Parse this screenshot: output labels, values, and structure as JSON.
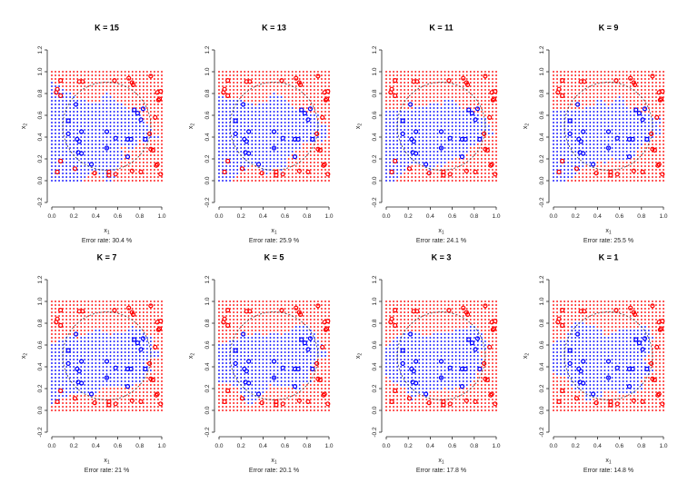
{
  "chart_data": {
    "type": "scatter",
    "xlabel": "x1",
    "ylabel": "x2",
    "xlim": [
      0,
      1
    ],
    "ylim": [
      -0.2,
      1.2
    ],
    "xticks": [
      "0.0",
      "0.2",
      "0.4",
      "0.6",
      "0.8",
      "1.0"
    ],
    "yticks": [
      "-0.2",
      "0.0",
      "0.2",
      "0.4",
      "0.6",
      "0.8",
      "1.0",
      "1.2"
    ],
    "colors": {
      "class_blue": "#0000ff",
      "class_red": "#ff0000"
    },
    "true_boundary": {
      "shape": "dashed circle",
      "center": [
        0.5,
        0.5
      ],
      "radius": 0.4
    },
    "panels": [
      {
        "title": "K = 15",
        "k": 15,
        "error": "Error rate: 30.4 %"
      },
      {
        "title": "K = 13",
        "k": 13,
        "error": "Error rate: 25.9 %"
      },
      {
        "title": "K = 11",
        "k": 11,
        "error": "Error rate: 24.1 %"
      },
      {
        "title": "K = 9",
        "k": 9,
        "error": "Error rate: 25.5 %"
      },
      {
        "title": "K = 7",
        "k": 7,
        "error": "Error rate: 21 %"
      },
      {
        "title": "K = 5",
        "k": 5,
        "error": "Error rate: 20.1 %"
      },
      {
        "title": "K = 3",
        "k": 3,
        "error": "Error rate: 17.8 %"
      },
      {
        "title": "K = 1",
        "k": 1,
        "error": "Error rate: 14.8 %"
      }
    ],
    "training_red": [
      [
        0.05,
        0.84
      ],
      [
        0.04,
        0.81
      ],
      [
        0.08,
        0.92
      ],
      [
        0.08,
        0.78
      ],
      [
        0.25,
        0.91
      ],
      [
        0.28,
        0.91
      ],
      [
        0.57,
        0.92
      ],
      [
        0.73,
        0.9
      ],
      [
        0.74,
        0.88
      ],
      [
        0.7,
        0.94
      ],
      [
        0.9,
        0.96
      ],
      [
        0.96,
        0.81
      ],
      [
        0.99,
        0.82
      ],
      [
        0.98,
        0.75
      ],
      [
        0.97,
        0.74
      ],
      [
        0.94,
        0.58
      ],
      [
        0.89,
        0.43
      ],
      [
        0.9,
        0.29
      ],
      [
        0.92,
        0.28
      ],
      [
        0.96,
        0.15
      ],
      [
        0.95,
        0.14
      ],
      [
        0.99,
        0.06
      ],
      [
        0.81,
        0.08
      ],
      [
        0.73,
        0.09
      ],
      [
        0.58,
        0.06
      ],
      [
        0.52,
        0.08
      ],
      [
        0.52,
        0.05
      ],
      [
        0.39,
        0.07
      ],
      [
        0.21,
        0.11
      ],
      [
        0.08,
        0.18
      ],
      [
        0.05,
        0.08
      ]
    ],
    "training_blue": [
      [
        0.22,
        0.7
      ],
      [
        0.15,
        0.55
      ],
      [
        0.15,
        0.43
      ],
      [
        0.27,
        0.45
      ],
      [
        0.23,
        0.38
      ],
      [
        0.25,
        0.36
      ],
      [
        0.24,
        0.26
      ],
      [
        0.27,
        0.25
      ],
      [
        0.36,
        0.15
      ],
      [
        0.5,
        0.3
      ],
      [
        0.5,
        0.45
      ],
      [
        0.58,
        0.39
      ],
      [
        0.69,
        0.38
      ],
      [
        0.72,
        0.38
      ],
      [
        0.69,
        0.22
      ],
      [
        0.75,
        0.65
      ],
      [
        0.78,
        0.62
      ],
      [
        0.81,
        0.56
      ],
      [
        0.83,
        0.66
      ],
      [
        0.85,
        0.38
      ]
    ]
  }
}
